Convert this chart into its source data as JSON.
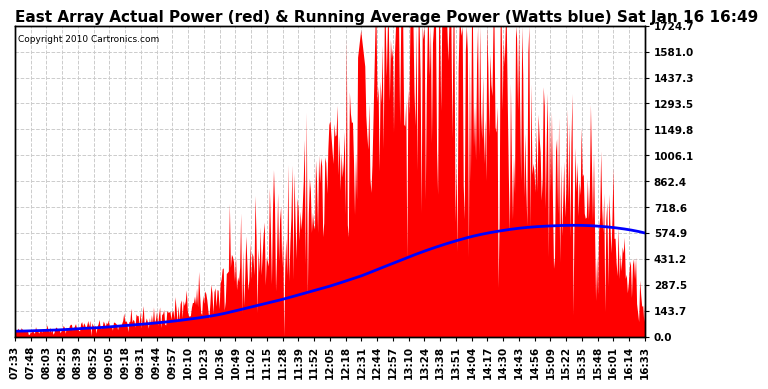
{
  "title": "East Array Actual Power (red) & Running Average Power (Watts blue) Sat Jan 16 16:49",
  "copyright": "Copyright 2010 Cartronics.com",
  "ylabel_right": [
    "0.0",
    "143.7",
    "287.5",
    "431.2",
    "574.9",
    "718.6",
    "862.4",
    "1006.1",
    "1149.8",
    "1293.5",
    "1437.3",
    "1581.0",
    "1724.7"
  ],
  "ymax": 1724.7,
  "ymin": 0.0,
  "yticks": [
    0.0,
    143.7,
    287.5,
    431.2,
    574.9,
    718.6,
    862.4,
    1006.1,
    1149.8,
    1293.5,
    1437.3,
    1581.0,
    1724.7
  ],
  "xtick_labels": [
    "07:33",
    "07:48",
    "08:03",
    "08:25",
    "08:39",
    "08:52",
    "09:05",
    "09:18",
    "09:31",
    "09:44",
    "09:57",
    "10:10",
    "10:23",
    "10:36",
    "10:49",
    "11:02",
    "11:15",
    "11:28",
    "11:39",
    "11:52",
    "12:05",
    "12:18",
    "12:31",
    "12:44",
    "12:57",
    "13:10",
    "13:24",
    "13:38",
    "13:51",
    "14:04",
    "14:17",
    "14:30",
    "14:43",
    "14:56",
    "15:09",
    "15:22",
    "15:35",
    "15:48",
    "16:01",
    "16:14",
    "16:33"
  ],
  "bg_color": "#ffffff",
  "grid_color": "#cccccc",
  "bar_color": "#ff0000",
  "line_color": "#0000ff",
  "title_fontsize": 11,
  "tick_fontsize": 7.5,
  "n_points": 41,
  "actual_power": [
    30,
    35,
    40,
    45,
    55,
    60,
    70,
    80,
    95,
    110,
    130,
    160,
    200,
    260,
    350,
    430,
    500,
    580,
    670,
    750,
    820,
    950,
    1050,
    1380,
    1550,
    1680,
    1720,
    1700,
    1650,
    1580,
    1480,
    1370,
    1250,
    1150,
    1050,
    940,
    820,
    680,
    520,
    350,
    120
  ],
  "actual_spikes": [
    0,
    0,
    0,
    0,
    0,
    0,
    0,
    0,
    0,
    0,
    0,
    0,
    100,
    200,
    350,
    150,
    200,
    100,
    150,
    200,
    300,
    400,
    500,
    400,
    250,
    200,
    150,
    100,
    150,
    200,
    150,
    120,
    100,
    80,
    60,
    50,
    40,
    30,
    20,
    10,
    0
  ],
  "running_avg": [
    30,
    32,
    35,
    38,
    44,
    48,
    54,
    61,
    68,
    76,
    85,
    96,
    108,
    123,
    143,
    164,
    185,
    207,
    231,
    255,
    280,
    308,
    337,
    372,
    406,
    441,
    474,
    504,
    531,
    555,
    574,
    589,
    601,
    609,
    614,
    617,
    617,
    613,
    605,
    593,
    575
  ]
}
